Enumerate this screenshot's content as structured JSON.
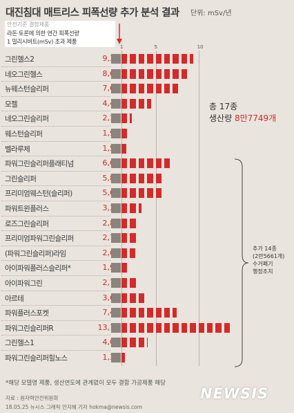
{
  "header": {
    "title": "대진침대 매트리스 피폭선량 추가 분석 결과",
    "unit": "단위: mSv/년"
  },
  "legend": {
    "heading": "안전기준 결함제품",
    "line1": "라돈·토론에 의한 연간 피폭선량",
    "line2": "1 밀리시버트(mSv) 초과 제품"
  },
  "summary": {
    "total_label": "총 17종",
    "production_label": "생산량",
    "production_count": "8만7749개"
  },
  "recall_note": [
    "추가 14종",
    "(2만5661개)",
    "수거폐기",
    "행정조치"
  ],
  "footnote": "*해당 모델명 제품, 생산연도에 관계없이 모두 결함 가공제품 해당",
  "source": "자료 : 원자력안전위원회",
  "credit": "18.05.25 뉴시스 그래픽 안지혜 기자 hokma@newsis.com",
  "watermark": "NEWSIS",
  "colors": {
    "bar": "#d42a2a",
    "value": "#cc2b2b",
    "stub": "#8a847c"
  },
  "chart_data": {
    "type": "bar",
    "orientation": "horizontal",
    "title": "대진침대 매트리스 피폭선량 추가 분석 결과",
    "unit": "mSv/년",
    "xlabel": "",
    "ylabel": "",
    "xlim": [
      0,
      14
    ],
    "x_ticks": [
      "1",
      "5",
      "10"
    ],
    "grid": false,
    "categories": [
      "그린헬스2",
      "네오그린헬스",
      "뉴웨스턴슬리퍼",
      "모젤",
      "네오그린슬리퍼",
      "웨스턴슬리퍼",
      "벨라루체",
      "파워그린슬리퍼플래티넘",
      "그린슬리퍼",
      "프리미엄웨스턴(슬리퍼)",
      "파워트윈플러스",
      "로즈그린슬리퍼",
      "프리미엄파워그린슬리퍼",
      "(파워그린슬리퍼)라임",
      "아이파워플러스슬리퍼*",
      "아이파워그린",
      "아르테",
      "파워플러스포켓",
      "파워그린슬리퍼R",
      "그린헬스1",
      "파워그린슬리퍼힐노스"
    ],
    "value_labels": [
      "9,35",
      "8,69",
      "7,60",
      "4,45",
      "2,18",
      "1,94",
      "1,59",
      "6,61",
      "5,84",
      "5,65",
      "3,37",
      "2,84",
      "2,70",
      "2,62",
      "1,90",
      "2,73",
      "3,67",
      "7,48",
      "13,74",
      "4,06",
      "1,37"
    ],
    "values": [
      9.35,
      8.69,
      7.6,
      4.45,
      2.18,
      1.94,
      1.59,
      6.61,
      5.84,
      5.65,
      3.37,
      2.84,
      2.7,
      2.62,
      1.9,
      2.73,
      3.67,
      7.48,
      13.74,
      4.06,
      1.37
    ]
  }
}
